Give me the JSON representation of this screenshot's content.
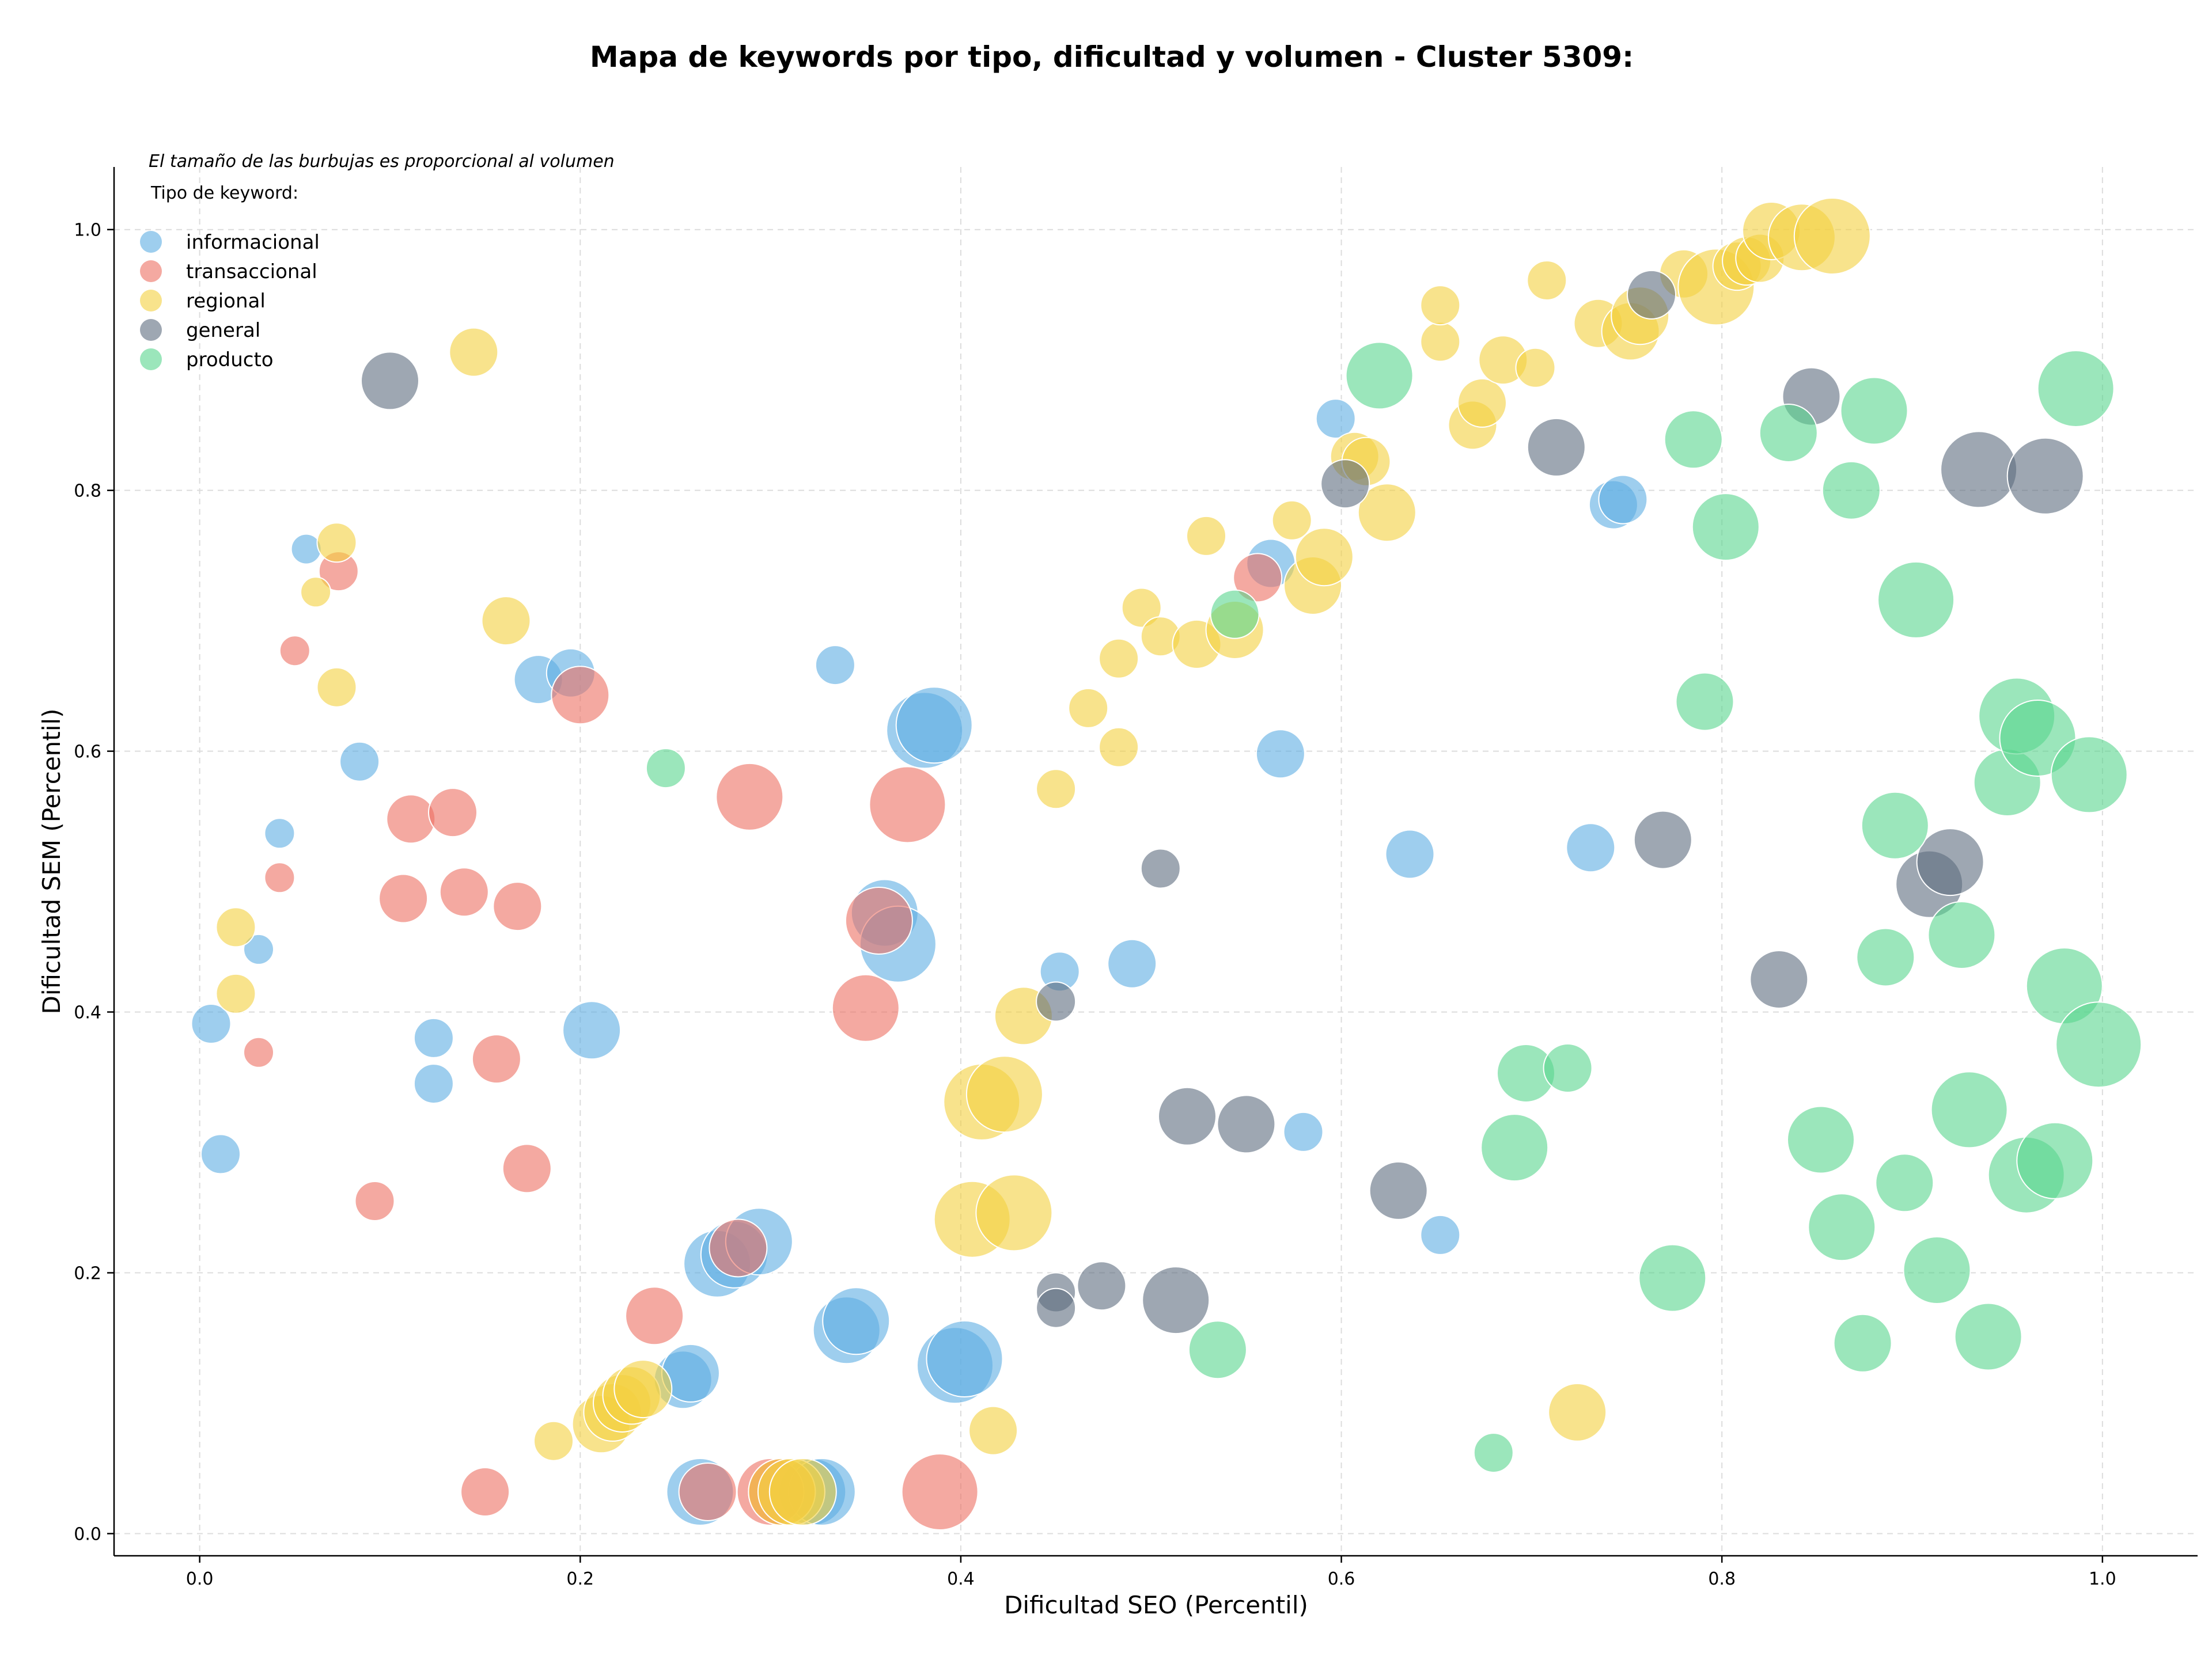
{
  "chart_data": {
    "type": "scatter",
    "title": "Mapa de keywords por tipo, dificultad y volumen - Cluster 5309:",
    "xlabel": "Dificultad SEO (Percentil)",
    "ylabel": "Dificultad SEM (Percentil)",
    "xlim": [
      -0.045,
      1.05
    ],
    "ylim": [
      -0.017,
      1.048
    ],
    "xticks": [
      0.0,
      0.2,
      0.4,
      0.6,
      0.8,
      1.0
    ],
    "yticks": [
      0.0,
      0.2,
      0.4,
      0.6,
      0.8,
      1.0
    ],
    "xtick_labels": [
      "0.0",
      "0.2",
      "0.4",
      "0.6",
      "0.8",
      "1.0"
    ],
    "ytick_labels": [
      "0.0",
      "0.2",
      "0.4",
      "0.6",
      "0.8",
      "1.0"
    ],
    "grid": true,
    "note": "El tamaño de las burbujas es proporcional al volumen",
    "legend_title": "Tipo de keyword:",
    "legend_position": "top-left",
    "size_encoding": "volume (relative)",
    "series": [
      {
        "name": "informacional",
        "color": "#5dade2",
        "points": [
          {
            "x": 0.006,
            "y": 0.391,
            "s": 2
          },
          {
            "x": 0.011,
            "y": 0.291,
            "s": 2
          },
          {
            "x": 0.031,
            "y": 0.448,
            "s": 1
          },
          {
            "x": 0.042,
            "y": 0.537,
            "s": 1
          },
          {
            "x": 0.056,
            "y": 0.755,
            "s": 1
          },
          {
            "x": 0.084,
            "y": 0.592,
            "s": 2
          },
          {
            "x": 0.123,
            "y": 0.38,
            "s": 2
          },
          {
            "x": 0.123,
            "y": 0.345,
            "s": 2
          },
          {
            "x": 0.178,
            "y": 0.655,
            "s": 3
          },
          {
            "x": 0.195,
            "y": 0.66,
            "s": 3
          },
          {
            "x": 0.206,
            "y": 0.386,
            "s": 4
          },
          {
            "x": 0.254,
            "y": 0.118,
            "s": 4
          },
          {
            "x": 0.258,
            "y": 0.123,
            "s": 4
          },
          {
            "x": 0.263,
            "y": 0.032,
            "s": 5
          },
          {
            "x": 0.272,
            "y": 0.207,
            "s": 5
          },
          {
            "x": 0.281,
            "y": 0.214,
            "s": 5
          },
          {
            "x": 0.294,
            "y": 0.224,
            "s": 5
          },
          {
            "x": 0.322,
            "y": 0.032,
            "s": 5
          },
          {
            "x": 0.327,
            "y": 0.032,
            "s": 5
          },
          {
            "x": 0.334,
            "y": 0.666,
            "s": 2
          },
          {
            "x": 0.34,
            "y": 0.156,
            "s": 5
          },
          {
            "x": 0.345,
            "y": 0.163,
            "s": 5
          },
          {
            "x": 0.36,
            "y": 0.476,
            "s": 5
          },
          {
            "x": 0.367,
            "y": 0.452,
            "s": 6
          },
          {
            "x": 0.381,
            "y": 0.616,
            "s": 6
          },
          {
            "x": 0.386,
            "y": 0.62,
            "s": 6
          },
          {
            "x": 0.397,
            "y": 0.129,
            "s": 6
          },
          {
            "x": 0.402,
            "y": 0.134,
            "s": 6
          },
          {
            "x": 0.452,
            "y": 0.431,
            "s": 2
          },
          {
            "x": 0.49,
            "y": 0.437,
            "s": 3
          },
          {
            "x": 0.563,
            "y": 0.744,
            "s": 3
          },
          {
            "x": 0.568,
            "y": 0.598,
            "s": 3
          },
          {
            "x": 0.58,
            "y": 0.308,
            "s": 2
          },
          {
            "x": 0.597,
            "y": 0.855,
            "s": 2
          },
          {
            "x": 0.636,
            "y": 0.521,
            "s": 3
          },
          {
            "x": 0.652,
            "y": 0.229,
            "s": 2
          },
          {
            "x": 0.731,
            "y": 0.526,
            "s": 3
          },
          {
            "x": 0.743,
            "y": 0.789,
            "s": 3
          },
          {
            "x": 0.748,
            "y": 0.793,
            "s": 3
          }
        ]
      },
      {
        "name": "transaccional",
        "color": "#ec7063",
        "points": [
          {
            "x": 0.031,
            "y": 0.369,
            "s": 1
          },
          {
            "x": 0.042,
            "y": 0.503,
            "s": 1
          },
          {
            "x": 0.05,
            "y": 0.677,
            "s": 1
          },
          {
            "x": 0.073,
            "y": 0.738,
            "s": 2
          },
          {
            "x": 0.092,
            "y": 0.255,
            "s": 2
          },
          {
            "x": 0.107,
            "y": 0.487,
            "s": 3
          },
          {
            "x": 0.111,
            "y": 0.548,
            "s": 3
          },
          {
            "x": 0.133,
            "y": 0.553,
            "s": 3
          },
          {
            "x": 0.139,
            "y": 0.492,
            "s": 3
          },
          {
            "x": 0.15,
            "y": 0.032,
            "s": 3
          },
          {
            "x": 0.156,
            "y": 0.364,
            "s": 3
          },
          {
            "x": 0.167,
            "y": 0.481,
            "s": 3
          },
          {
            "x": 0.172,
            "y": 0.28,
            "s": 3
          },
          {
            "x": 0.2,
            "y": 0.643,
            "s": 4
          },
          {
            "x": 0.239,
            "y": 0.167,
            "s": 4
          },
          {
            "x": 0.267,
            "y": 0.032,
            "s": 4
          },
          {
            "x": 0.283,
            "y": 0.219,
            "s": 4
          },
          {
            "x": 0.289,
            "y": 0.565,
            "s": 5
          },
          {
            "x": 0.3,
            "y": 0.032,
            "s": 5
          },
          {
            "x": 0.306,
            "y": 0.032,
            "s": 5
          },
          {
            "x": 0.35,
            "y": 0.403,
            "s": 5
          },
          {
            "x": 0.357,
            "y": 0.47,
            "s": 5
          },
          {
            "x": 0.372,
            "y": 0.559,
            "s": 6
          },
          {
            "x": 0.389,
            "y": 0.032,
            "s": 6
          },
          {
            "x": 0.556,
            "y": 0.733,
            "s": 3
          }
        ]
      },
      {
        "name": "regional",
        "color": "#f4d03f",
        "points": [
          {
            "x": 0.019,
            "y": 0.414,
            "s": 2
          },
          {
            "x": 0.019,
            "y": 0.465,
            "s": 2
          },
          {
            "x": 0.061,
            "y": 0.722,
            "s": 1
          },
          {
            "x": 0.072,
            "y": 0.649,
            "s": 2
          },
          {
            "x": 0.072,
            "y": 0.76,
            "s": 2
          },
          {
            "x": 0.144,
            "y": 0.906,
            "s": 3
          },
          {
            "x": 0.161,
            "y": 0.7,
            "s": 3
          },
          {
            "x": 0.186,
            "y": 0.071,
            "s": 2
          },
          {
            "x": 0.211,
            "y": 0.084,
            "s": 4
          },
          {
            "x": 0.217,
            "y": 0.093,
            "s": 4
          },
          {
            "x": 0.222,
            "y": 0.1,
            "s": 4
          },
          {
            "x": 0.227,
            "y": 0.106,
            "s": 4
          },
          {
            "x": 0.233,
            "y": 0.111,
            "s": 4
          },
          {
            "x": 0.306,
            "y": 0.032,
            "s": 5
          },
          {
            "x": 0.311,
            "y": 0.032,
            "s": 5
          },
          {
            "x": 0.317,
            "y": 0.032,
            "s": 5
          },
          {
            "x": 0.406,
            "y": 0.241,
            "s": 6
          },
          {
            "x": 0.411,
            "y": 0.331,
            "s": 6
          },
          {
            "x": 0.417,
            "y": 0.079,
            "s": 3
          },
          {
            "x": 0.423,
            "y": 0.337,
            "s": 6
          },
          {
            "x": 0.428,
            "y": 0.246,
            "s": 6
          },
          {
            "x": 0.433,
            "y": 0.397,
            "s": 4
          },
          {
            "x": 0.45,
            "y": 0.571,
            "s": 2
          },
          {
            "x": 0.467,
            "y": 0.633,
            "s": 2
          },
          {
            "x": 0.483,
            "y": 0.603,
            "s": 2
          },
          {
            "x": 0.483,
            "y": 0.671,
            "s": 2
          },
          {
            "x": 0.495,
            "y": 0.71,
            "s": 2
          },
          {
            "x": 0.505,
            "y": 0.688,
            "s": 2
          },
          {
            "x": 0.524,
            "y": 0.682,
            "s": 3
          },
          {
            "x": 0.529,
            "y": 0.765,
            "s": 2
          },
          {
            "x": 0.544,
            "y": 0.693,
            "s": 4
          },
          {
            "x": 0.574,
            "y": 0.777,
            "s": 2
          },
          {
            "x": 0.585,
            "y": 0.727,
            "s": 4
          },
          {
            "x": 0.591,
            "y": 0.749,
            "s": 4
          },
          {
            "x": 0.607,
            "y": 0.826,
            "s": 3
          },
          {
            "x": 0.613,
            "y": 0.822,
            "s": 3
          },
          {
            "x": 0.624,
            "y": 0.783,
            "s": 4
          },
          {
            "x": 0.652,
            "y": 0.914,
            "s": 2
          },
          {
            "x": 0.652,
            "y": 0.942,
            "s": 2
          },
          {
            "x": 0.669,
            "y": 0.85,
            "s": 3
          },
          {
            "x": 0.674,
            "y": 0.867,
            "s": 3
          },
          {
            "x": 0.685,
            "y": 0.9,
            "s": 3
          },
          {
            "x": 0.702,
            "y": 0.894,
            "s": 2
          },
          {
            "x": 0.708,
            "y": 0.961,
            "s": 2
          },
          {
            "x": 0.724,
            "y": 0.093,
            "s": 4
          },
          {
            "x": 0.735,
            "y": 0.928,
            "s": 3
          },
          {
            "x": 0.752,
            "y": 0.922,
            "s": 4
          },
          {
            "x": 0.757,
            "y": 0.934,
            "s": 4
          },
          {
            "x": 0.78,
            "y": 0.966,
            "s": 3
          },
          {
            "x": 0.797,
            "y": 0.956,
            "s": 6
          },
          {
            "x": 0.808,
            "y": 0.972,
            "s": 3
          },
          {
            "x": 0.813,
            "y": 0.976,
            "s": 3
          },
          {
            "x": 0.82,
            "y": 0.978,
            "s": 3
          },
          {
            "x": 0.826,
            "y": 0.999,
            "s": 4
          },
          {
            "x": 0.842,
            "y": 0.994,
            "s": 5
          },
          {
            "x": 0.858,
            "y": 0.995,
            "s": 6
          }
        ]
      },
      {
        "name": "general",
        "color": "#5d6d7e",
        "points": [
          {
            "x": 0.1,
            "y": 0.884,
            "s": 4
          },
          {
            "x": 0.45,
            "y": 0.185,
            "s": 2
          },
          {
            "x": 0.45,
            "y": 0.173,
            "s": 2
          },
          {
            "x": 0.45,
            "y": 0.408,
            "s": 2
          },
          {
            "x": 0.474,
            "y": 0.19,
            "s": 3
          },
          {
            "x": 0.505,
            "y": 0.51,
            "s": 2
          },
          {
            "x": 0.513,
            "y": 0.179,
            "s": 5
          },
          {
            "x": 0.519,
            "y": 0.32,
            "s": 4
          },
          {
            "x": 0.55,
            "y": 0.314,
            "s": 4
          },
          {
            "x": 0.602,
            "y": 0.805,
            "s": 3
          },
          {
            "x": 0.63,
            "y": 0.263,
            "s": 4
          },
          {
            "x": 0.713,
            "y": 0.833,
            "s": 4
          },
          {
            "x": 0.763,
            "y": 0.95,
            "s": 3
          },
          {
            "x": 0.769,
            "y": 0.532,
            "s": 4
          },
          {
            "x": 0.83,
            "y": 0.425,
            "s": 4
          },
          {
            "x": 0.847,
            "y": 0.872,
            "s": 4
          },
          {
            "x": 0.909,
            "y": 0.498,
            "s": 5
          },
          {
            "x": 0.92,
            "y": 0.515,
            "s": 5
          },
          {
            "x": 0.935,
            "y": 0.816,
            "s": 6
          },
          {
            "x": 0.97,
            "y": 0.811,
            "s": 6
          }
        ]
      },
      {
        "name": "producto",
        "color": "#58d68d",
        "points": [
          {
            "x": 0.245,
            "y": 0.587,
            "s": 2
          },
          {
            "x": 0.535,
            "y": 0.141,
            "s": 4
          },
          {
            "x": 0.544,
            "y": 0.705,
            "s": 3
          },
          {
            "x": 0.62,
            "y": 0.888,
            "s": 5
          },
          {
            "x": 0.68,
            "y": 0.062,
            "s": 2
          },
          {
            "x": 0.691,
            "y": 0.296,
            "s": 5
          },
          {
            "x": 0.697,
            "y": 0.353,
            "s": 4
          },
          {
            "x": 0.719,
            "y": 0.357,
            "s": 3
          },
          {
            "x": 0.774,
            "y": 0.196,
            "s": 5
          },
          {
            "x": 0.785,
            "y": 0.839,
            "s": 4
          },
          {
            "x": 0.791,
            "y": 0.638,
            "s": 4
          },
          {
            "x": 0.802,
            "y": 0.772,
            "s": 5
          },
          {
            "x": 0.835,
            "y": 0.844,
            "s": 4
          },
          {
            "x": 0.852,
            "y": 0.302,
            "s": 5
          },
          {
            "x": 0.863,
            "y": 0.235,
            "s": 5
          },
          {
            "x": 0.868,
            "y": 0.8,
            "s": 4
          },
          {
            "x": 0.874,
            "y": 0.146,
            "s": 4
          },
          {
            "x": 0.88,
            "y": 0.861,
            "s": 5
          },
          {
            "x": 0.886,
            "y": 0.442,
            "s": 4
          },
          {
            "x": 0.891,
            "y": 0.543,
            "s": 5
          },
          {
            "x": 0.896,
            "y": 0.269,
            "s": 4
          },
          {
            "x": 0.902,
            "y": 0.716,
            "s": 6
          },
          {
            "x": 0.913,
            "y": 0.202,
            "s": 5
          },
          {
            "x": 0.926,
            "y": 0.459,
            "s": 5
          },
          {
            "x": 0.93,
            "y": 0.325,
            "s": 6
          },
          {
            "x": 0.94,
            "y": 0.151,
            "s": 5
          },
          {
            "x": 0.95,
            "y": 0.576,
            "s": 5
          },
          {
            "x": 0.955,
            "y": 0.627,
            "s": 6
          },
          {
            "x": 0.96,
            "y": 0.275,
            "s": 6
          },
          {
            "x": 0.966,
            "y": 0.61,
            "s": 6
          },
          {
            "x": 0.975,
            "y": 0.286,
            "s": 6
          },
          {
            "x": 0.98,
            "y": 0.42,
            "s": 6
          },
          {
            "x": 0.986,
            "y": 0.878,
            "s": 6
          },
          {
            "x": 0.993,
            "y": 0.582,
            "s": 6
          },
          {
            "x": 0.998,
            "y": 0.375,
            "s": 7
          }
        ]
      }
    ]
  }
}
